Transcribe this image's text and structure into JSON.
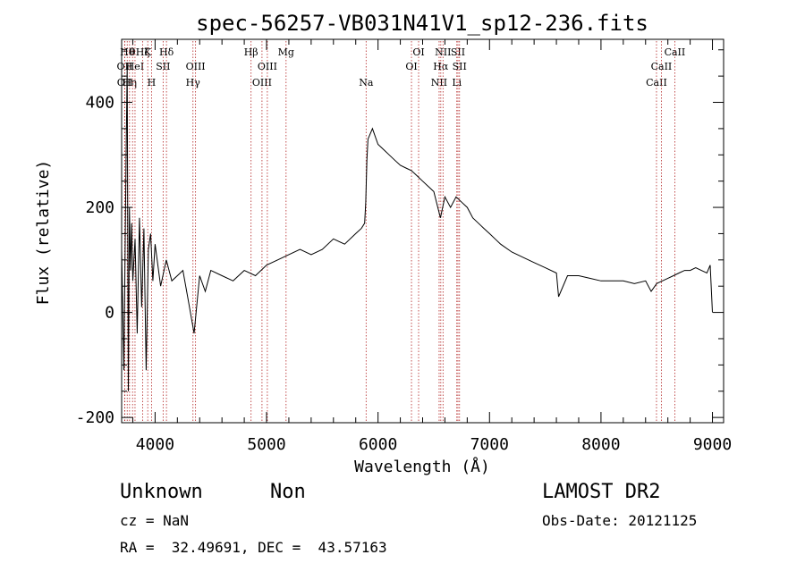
{
  "chart_data": {
    "type": "line",
    "title": "spec-56257-VB031N41V1_sp12-236.fits",
    "xlabel": "Wavelength (Å)",
    "ylabel": "Flux (relative)",
    "xlim": [
      3700,
      9100
    ],
    "ylim": [
      -210,
      520
    ],
    "x_ticks": [
      4000,
      5000,
      6000,
      7000,
      8000,
      9000
    ],
    "y_ticks": [
      -200,
      0,
      200,
      400
    ],
    "grid": false,
    "series": [
      {
        "x": [
          3700,
          3720,
          3740,
          3750,
          3760,
          3770,
          3780,
          3790,
          3800,
          3820,
          3840,
          3860,
          3880,
          3900,
          3920,
          3940,
          3960,
          3980,
          4000,
          4050,
          4100,
          4150,
          4200,
          4250,
          4300,
          4350,
          4400,
          4450,
          4500,
          4600,
          4700,
          4800,
          4900,
          5000,
          5100,
          5200,
          5300,
          5400,
          5500,
          5600,
          5700,
          5800,
          5850,
          5880,
          5890,
          5900,
          5910,
          5950,
          6000,
          6050,
          6100,
          6150,
          6200,
          6250,
          6300,
          6350,
          6400,
          6450,
          6500,
          6560,
          6600,
          6650,
          6700,
          6750,
          6800,
          6850,
          6900,
          6950,
          7000,
          7050,
          7100,
          7200,
          7300,
          7400,
          7500,
          7600,
          7620,
          7700,
          7800,
          7900,
          8000,
          8100,
          8200,
          8300,
          8400,
          8450,
          8500,
          8550,
          8600,
          8650,
          8700,
          8750,
          8800,
          8850,
          8900,
          8950,
          8980,
          9000
        ],
        "y": [
          120,
          -110,
          300,
          470,
          -150,
          200,
          80,
          170,
          60,
          140,
          -40,
          180,
          10,
          160,
          -110,
          120,
          150,
          60,
          130,
          50,
          100,
          60,
          70,
          80,
          20,
          -40,
          70,
          40,
          80,
          70,
          60,
          80,
          70,
          90,
          100,
          110,
          120,
          110,
          120,
          140,
          130,
          150,
          160,
          170,
          210,
          290,
          330,
          350,
          320,
          310,
          300,
          290,
          280,
          275,
          270,
          260,
          250,
          240,
          230,
          180,
          220,
          200,
          220,
          210,
          200,
          180,
          170,
          160,
          150,
          140,
          130,
          115,
          105,
          95,
          85,
          75,
          30,
          70,
          70,
          65,
          60,
          60,
          60,
          55,
          60,
          40,
          55,
          60,
          65,
          70,
          75,
          80,
          80,
          85,
          80,
          75,
          90,
          0
        ]
      }
    ],
    "lines": [
      {
        "x": 3727,
        "label": "OII",
        "row": 2
      },
      {
        "x": 3729,
        "label": "OII",
        "row": 3
      },
      {
        "x": 3750,
        "label": "Hθ",
        "row": 1
      },
      {
        "x": 3771,
        "label": "Hη",
        "row": 3
      },
      {
        "x": 3798,
        "label": "θ",
        "row": 1
      },
      {
        "x": 3820,
        "label": "HeI",
        "row": 2
      },
      {
        "x": 3889,
        "label": "Hζ",
        "row": 1
      },
      {
        "x": 3934,
        "label": "K",
        "row": 1
      },
      {
        "x": 3968,
        "label": "H",
        "row": 3
      },
      {
        "x": 4072,
        "label": "SII",
        "row": 2
      },
      {
        "x": 4102,
        "label": "Hδ",
        "row": 1
      },
      {
        "x": 4340,
        "label": "Hγ",
        "row": 3
      },
      {
        "x": 4363,
        "label": "OIII",
        "row": 2
      },
      {
        "x": 4861,
        "label": "Hβ",
        "row": 1
      },
      {
        "x": 4959,
        "label": "OIII",
        "row": 3
      },
      {
        "x": 5007,
        "label": "OIII",
        "row": 2
      },
      {
        "x": 5175,
        "label": "Mg",
        "row": 1
      },
      {
        "x": 5893,
        "label": "Na",
        "row": 3
      },
      {
        "x": 6300,
        "label": "OI",
        "row": 2
      },
      {
        "x": 6364,
        "label": "OI",
        "row": 1
      },
      {
        "x": 6548,
        "label": "NII",
        "row": 3
      },
      {
        "x": 6563,
        "label": "Hα",
        "row": 2
      },
      {
        "x": 6583,
        "label": "NII",
        "row": 1
      },
      {
        "x": 6707,
        "label": "Li",
        "row": 3
      },
      {
        "x": 6717,
        "label": "SII",
        "row": 1
      },
      {
        "x": 6731,
        "label": "SII",
        "row": 2
      },
      {
        "x": 8498,
        "label": "CaII",
        "row": 3
      },
      {
        "x": 8542,
        "label": "CaII",
        "row": 2
      },
      {
        "x": 8662,
        "label": "CaII",
        "row": 1
      }
    ]
  },
  "info": {
    "class": "Unknown",
    "subclass": "Non",
    "survey": "LAMOST DR2",
    "cz": "cz = NaN",
    "obs_date": "Obs-Date: 20121125",
    "coords": "RA =  32.49691, DEC =  43.57163"
  }
}
